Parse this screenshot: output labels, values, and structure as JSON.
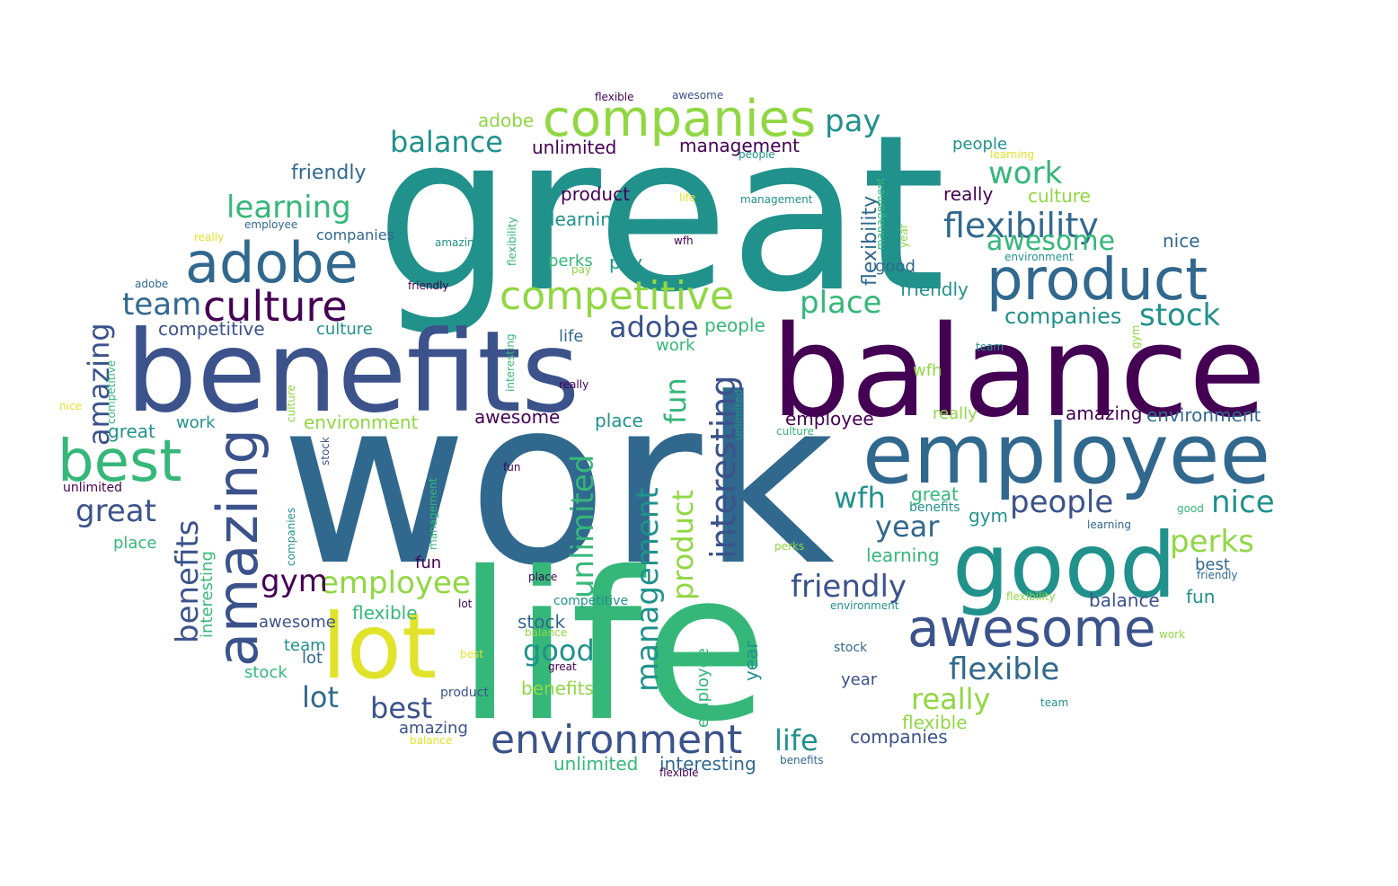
{
  "palette": {
    "dark_purple": "#440154",
    "indigo": "#3b528b",
    "slate": "#31688e",
    "teal": "#21918c",
    "green": "#35b779",
    "lime": "#90d743",
    "yellow": "#e0e32a"
  },
  "words": [
    {
      "text": "work",
      "color": "slate"
    },
    {
      "text": "great",
      "color": "teal"
    },
    {
      "text": "life",
      "color": "green"
    },
    {
      "text": "balance",
      "color": "dark_purple"
    },
    {
      "text": "benefits",
      "color": "indigo"
    },
    {
      "text": "employee",
      "color": "slate"
    },
    {
      "text": "good",
      "color": "teal"
    },
    {
      "text": "lot",
      "color": "yellow"
    },
    {
      "text": "companies",
      "color": "lime"
    },
    {
      "text": "adobe",
      "color": "slate"
    },
    {
      "text": "product",
      "color": "slate"
    },
    {
      "text": "best",
      "color": "green"
    },
    {
      "text": "amazing",
      "color": "indigo"
    },
    {
      "text": "awesome",
      "color": "indigo"
    },
    {
      "text": "culture",
      "color": "dark_purple"
    },
    {
      "text": "competitive",
      "color": "lime"
    },
    {
      "text": "environment",
      "color": "indigo"
    },
    {
      "text": "flexibility",
      "color": "slate"
    },
    {
      "text": "interesting",
      "color": "indigo"
    },
    {
      "text": "unlimited",
      "color": "green"
    },
    {
      "text": "management",
      "color": "teal"
    },
    {
      "text": "benefits",
      "color": "indigo"
    },
    {
      "text": "amazing",
      "color": "indigo"
    },
    {
      "text": "flexible",
      "color": "slate"
    },
    {
      "text": "employee",
      "color": "lime"
    },
    {
      "text": "friendly",
      "color": "indigo"
    },
    {
      "text": "people",
      "color": "indigo"
    },
    {
      "text": "awesome",
      "color": "green"
    },
    {
      "text": "stock",
      "color": "teal"
    },
    {
      "text": "place",
      "color": "green"
    },
    {
      "text": "pay",
      "color": "teal"
    },
    {
      "text": "balance",
      "color": "teal"
    },
    {
      "text": "learning",
      "color": "green"
    },
    {
      "text": "team",
      "color": "slate"
    },
    {
      "text": "work",
      "color": "green"
    },
    {
      "text": "really",
      "color": "lime"
    },
    {
      "text": "perks",
      "color": "lime"
    },
    {
      "text": "nice",
      "color": "teal"
    },
    {
      "text": "great",
      "color": "indigo"
    },
    {
      "text": "wfh",
      "color": "teal"
    },
    {
      "text": "year",
      "color": "slate"
    },
    {
      "text": "fun",
      "color": "green"
    },
    {
      "text": "product",
      "color": "lime"
    },
    {
      "text": "gym",
      "color": "dark_purple"
    },
    {
      "text": "adobe",
      "color": "indigo"
    },
    {
      "text": "best",
      "color": "indigo"
    },
    {
      "text": "lot",
      "color": "slate"
    },
    {
      "text": "life",
      "color": "teal"
    },
    {
      "text": "good",
      "color": "teal"
    },
    {
      "text": "companies",
      "color": "teal"
    },
    {
      "text": "stock",
      "color": "slate"
    },
    {
      "text": "management",
      "color": "dark_purple"
    },
    {
      "text": "unlimited",
      "color": "dark_purple"
    },
    {
      "text": "culture",
      "color": "lime"
    },
    {
      "text": "work",
      "color": "green"
    },
    {
      "text": "flexible",
      "color": "green"
    },
    {
      "text": "friendly",
      "color": "slate"
    },
    {
      "text": "learning",
      "color": "teal"
    },
    {
      "text": "flexibility",
      "color": "slate"
    },
    {
      "text": "competitive",
      "color": "indigo"
    },
    {
      "text": "unlimited",
      "color": "green"
    },
    {
      "text": "interesting",
      "color": "slate"
    },
    {
      "text": "environment",
      "color": "lime"
    },
    {
      "text": "companies",
      "color": "indigo"
    },
    {
      "text": "benefits",
      "color": "lime"
    },
    {
      "text": "friendly",
      "color": "teal"
    },
    {
      "text": "people",
      "color": "green"
    },
    {
      "text": "employee",
      "color": "dark_purple"
    },
    {
      "text": "amazing",
      "color": "dark_purple"
    },
    {
      "text": "environment",
      "color": "slate"
    },
    {
      "text": "awesome",
      "color": "dark_purple"
    },
    {
      "text": "place",
      "color": "teal"
    },
    {
      "text": "product",
      "color": "dark_purple"
    },
    {
      "text": "really",
      "color": "dark_purple"
    },
    {
      "text": "learning",
      "color": "green"
    },
    {
      "text": "great",
      "color": "green"
    },
    {
      "text": "balance",
      "color": "indigo"
    },
    {
      "text": "year",
      "color": "teal"
    },
    {
      "text": "pay",
      "color": "teal"
    },
    {
      "text": "gym",
      "color": "teal"
    },
    {
      "text": "fun",
      "color": "teal"
    },
    {
      "text": "nice",
      "color": "slate"
    },
    {
      "text": "adobe",
      "color": "lime"
    },
    {
      "text": "best",
      "color": "slate"
    },
    {
      "text": "team",
      "color": "teal"
    },
    {
      "text": "lot",
      "color": "slate"
    },
    {
      "text": "stock",
      "color": "green"
    },
    {
      "text": "perks",
      "color": "green"
    },
    {
      "text": "culture",
      "color": "teal"
    },
    {
      "text": "place",
      "color": "green"
    },
    {
      "text": "life",
      "color": "slate"
    },
    {
      "text": "good",
      "color": "slate"
    },
    {
      "text": "wfh",
      "color": "lime"
    },
    {
      "text": "fun",
      "color": "dark_purple"
    },
    {
      "text": "year",
      "color": "indigo"
    },
    {
      "text": "flexible",
      "color": "lime"
    },
    {
      "text": "work",
      "color": "teal"
    },
    {
      "text": "great",
      "color": "teal"
    },
    {
      "text": "unlimited",
      "color": "teal"
    },
    {
      "text": "interesting",
      "color": "green"
    },
    {
      "text": "management",
      "color": "teal"
    },
    {
      "text": "flexibility",
      "color": "lime"
    },
    {
      "text": "competitive",
      "color": "teal"
    },
    {
      "text": "benefits",
      "color": "teal"
    },
    {
      "text": "employee",
      "color": "green"
    },
    {
      "text": "amazing",
      "color": "indigo"
    },
    {
      "text": "awesome",
      "color": "indigo"
    },
    {
      "text": "companies",
      "color": "slate"
    },
    {
      "text": "environment",
      "color": "teal"
    },
    {
      "text": "product",
      "color": "indigo"
    },
    {
      "text": "people",
      "color": "teal"
    },
    {
      "text": "friendly",
      "color": "slate"
    },
    {
      "text": "really",
      "color": "lime"
    },
    {
      "text": "balance",
      "color": "lime"
    },
    {
      "text": "learning",
      "color": "slate"
    },
    {
      "text": "flexible",
      "color": "dark_purple"
    },
    {
      "text": "stock",
      "color": "slate"
    },
    {
      "text": "culture",
      "color": "green"
    },
    {
      "text": "unlimited",
      "color": "dark_purple"
    },
    {
      "text": "management",
      "color": "green"
    },
    {
      "text": "interesting",
      "color": "green"
    },
    {
      "text": "flexibility",
      "color": "green"
    },
    {
      "text": "competitive",
      "color": "green"
    },
    {
      "text": "team",
      "color": "teal"
    },
    {
      "text": "nice",
      "color": "yellow"
    },
    {
      "text": "perks",
      "color": "lime"
    },
    {
      "text": "really",
      "color": "yellow"
    },
    {
      "text": "gym",
      "color": "lime"
    },
    {
      "text": "fun",
      "color": "dark_purple"
    },
    {
      "text": "wfh",
      "color": "dark_purple"
    },
    {
      "text": "year",
      "color": "lime"
    },
    {
      "text": "pay",
      "color": "lime"
    },
    {
      "text": "adobe",
      "color": "slate"
    },
    {
      "text": "best",
      "color": "yellow"
    },
    {
      "text": "lot",
      "color": "dark_purple"
    },
    {
      "text": "good",
      "color": "green"
    },
    {
      "text": "life",
      "color": "yellow"
    },
    {
      "text": "great",
      "color": "dark_purple"
    },
    {
      "text": "place",
      "color": "dark_purple"
    },
    {
      "text": "stock",
      "color": "indigo"
    },
    {
      "text": "amazing",
      "color": "teal"
    },
    {
      "text": "awesome",
      "color": "indigo"
    },
    {
      "text": "people",
      "color": "teal"
    },
    {
      "text": "benefits",
      "color": "slate"
    },
    {
      "text": "employee",
      "color": "slate"
    },
    {
      "text": "friendly",
      "color": "dark_purple"
    },
    {
      "text": "companies",
      "color": "teal"
    },
    {
      "text": "balance",
      "color": "yellow"
    },
    {
      "text": "flexible",
      "color": "dark_purple"
    },
    {
      "text": "culture",
      "color": "lime"
    },
    {
      "text": "environment",
      "color": "teal"
    },
    {
      "text": "learning",
      "color": "yellow"
    },
    {
      "text": "management",
      "color": "green"
    },
    {
      "text": "team",
      "color": "teal"
    },
    {
      "text": "work",
      "color": "lime"
    },
    {
      "text": "really",
      "color": "dark_purple"
    }
  ]
}
